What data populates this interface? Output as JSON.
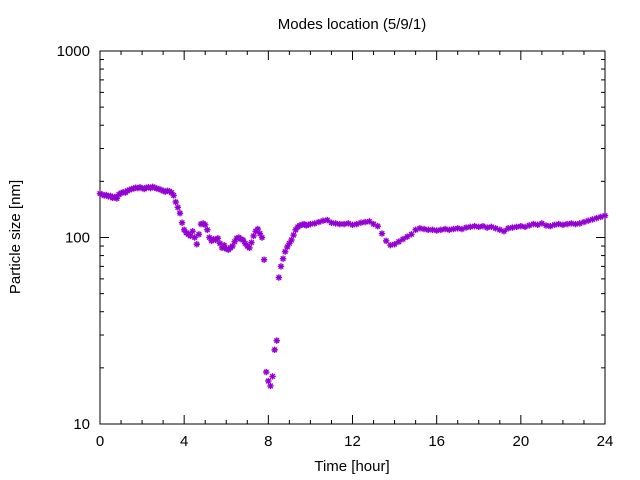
{
  "chart_data": {
    "type": "scatter",
    "title": "Modes location (5/9/1)",
    "xlabel": "Time [hour]",
    "ylabel": "Particle size [nm]",
    "xlim": [
      0,
      24
    ],
    "ylim": [
      10,
      1000
    ],
    "y_scale": "log",
    "x_ticks": [
      0,
      4,
      8,
      12,
      16,
      20,
      24
    ],
    "y_ticks": [
      10,
      100,
      1000
    ],
    "x_tick_labels": [
      "0",
      "4",
      "8",
      "12",
      "16",
      "20",
      "24"
    ],
    "y_tick_labels": [
      "10",
      "100",
      "1000"
    ],
    "grid": false,
    "legend": "none",
    "marker": "asterisk",
    "series_color": "#9400D3",
    "series": [
      {
        "x": [
          0.0,
          0.1,
          0.2,
          0.3,
          0.4,
          0.5,
          0.6,
          0.7,
          0.8,
          0.9,
          1.0,
          1.1,
          1.2,
          1.3,
          1.4,
          1.5,
          1.6,
          1.7,
          1.8,
          1.9,
          2.0,
          2.1,
          2.2,
          2.3,
          2.4,
          2.5,
          2.6,
          2.7,
          2.8,
          2.9,
          3.0,
          3.1,
          3.2,
          3.3,
          3.4,
          3.5,
          3.6,
          3.7,
          3.8,
          3.9,
          4.0,
          4.1,
          4.2,
          4.3,
          4.4,
          4.5,
          4.6,
          4.7,
          4.8,
          4.9,
          5.0,
          5.1,
          5.2,
          5.3,
          5.4,
          5.5,
          5.6,
          5.7,
          5.8,
          5.9,
          6.0,
          6.1,
          6.2,
          6.3,
          6.4,
          6.5,
          6.6,
          6.7,
          6.8,
          6.9,
          7.0,
          7.1,
          7.2,
          7.3,
          7.4,
          7.5,
          7.6,
          7.7,
          7.8,
          7.9,
          8.0,
          8.1,
          8.2,
          8.3,
          8.4,
          8.5,
          8.6,
          8.7,
          8.8,
          8.9,
          9.0,
          9.1,
          9.2,
          9.3,
          9.4,
          9.5,
          9.6,
          9.7,
          9.8,
          9.9,
          10.0,
          10.2,
          10.4,
          10.6,
          10.8,
          11.0,
          11.2,
          11.4,
          11.6,
          11.8,
          12.0,
          12.2,
          12.4,
          12.6,
          12.8,
          13.0,
          13.2,
          13.4,
          13.6,
          13.8,
          14.0,
          14.2,
          14.4,
          14.6,
          14.8,
          15.0,
          15.2,
          15.4,
          15.6,
          15.8,
          16.0,
          16.2,
          16.4,
          16.6,
          16.8,
          17.0,
          17.2,
          17.4,
          17.6,
          17.8,
          18.0,
          18.2,
          18.4,
          18.6,
          18.8,
          19.0,
          19.2,
          19.4,
          19.6,
          19.8,
          20.0,
          20.2,
          20.4,
          20.6,
          20.8,
          21.0,
          21.2,
          21.4,
          21.6,
          21.8,
          22.0,
          22.2,
          22.4,
          22.6,
          22.8,
          23.0,
          23.2,
          23.4,
          23.6,
          23.8,
          24.0
        ],
        "y": [
          172,
          170,
          168,
          169,
          166,
          167,
          163,
          165,
          162,
          170,
          173,
          175,
          174,
          178,
          180,
          182,
          183,
          185,
          184,
          186,
          184,
          182,
          185,
          186,
          184,
          187,
          185,
          183,
          182,
          180,
          178,
          176,
          178,
          177,
          174,
          168,
          155,
          145,
          135,
          120,
          110,
          106,
          104,
          102,
          108,
          100,
          92,
          104,
          118,
          119,
          117,
          110,
          100,
          96,
          98,
          97,
          99,
          93,
          88,
          91,
          87,
          86,
          88,
          90,
          95,
          99,
          100,
          98,
          97,
          93,
          90,
          88,
          94,
          102,
          108,
          111,
          105,
          100,
          76,
          19,
          17,
          16,
          18,
          25,
          28,
          61,
          70,
          77,
          84,
          89,
          93,
          97,
          103,
          110,
          114,
          116,
          117,
          118,
          116,
          117,
          118,
          119,
          121,
          123,
          124,
          120,
          119,
          118,
          118,
          119,
          117,
          118,
          120,
          121,
          122,
          118,
          115,
          105,
          96,
          91,
          92,
          95,
          98,
          101,
          104,
          110,
          112,
          111,
          110,
          110,
          109,
          110,
          111,
          110,
          111,
          112,
          111,
          113,
          114,
          115,
          114,
          115,
          113,
          114,
          112,
          110,
          108,
          112,
          113,
          114,
          115,
          114,
          116,
          118,
          117,
          119,
          116,
          115,
          117,
          118,
          117,
          118,
          119,
          118,
          119,
          121,
          123,
          125,
          127,
          129,
          131
        ]
      }
    ]
  }
}
